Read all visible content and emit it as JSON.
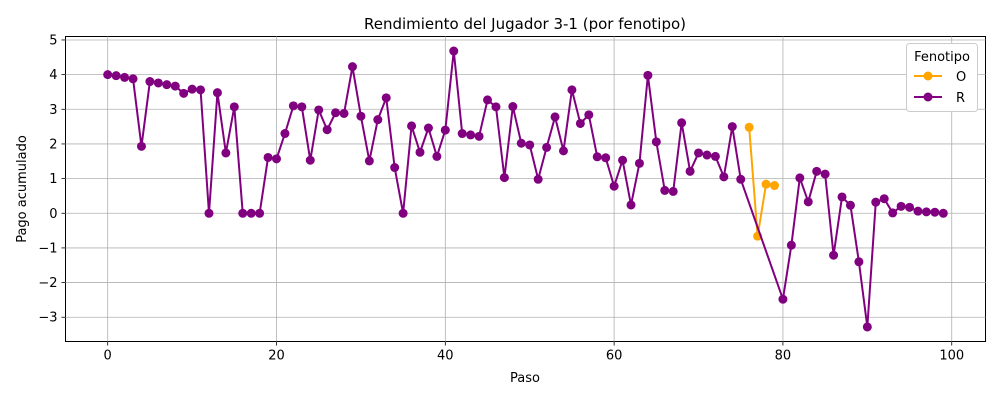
{
  "chart_data": {
    "type": "line",
    "title": "Rendimiento del Jugador 3-1 (por fenotipo)",
    "xlabel": "Paso",
    "ylabel": "Pago acumulado",
    "xlim": [
      -5,
      104
    ],
    "ylim": [
      -3.7,
      5.1
    ],
    "xticks": [
      0,
      20,
      40,
      60,
      80,
      100
    ],
    "yticks": [
      -3,
      -2,
      -1,
      0,
      1,
      2,
      3,
      4,
      5
    ],
    "grid": true,
    "legend": {
      "title": "Fenotipo",
      "placement": "top-right"
    },
    "series": [
      {
        "name": "O",
        "color": "#FFA500",
        "x": [
          76,
          77,
          78,
          79
        ],
        "y": [
          2.48,
          -0.66,
          0.84,
          0.8
        ]
      },
      {
        "name": "R",
        "color": "#800080",
        "x": [
          0,
          1,
          2,
          3,
          4,
          5,
          6,
          7,
          8,
          9,
          10,
          11,
          12,
          13,
          14,
          15,
          16,
          17,
          18,
          19,
          20,
          21,
          22,
          23,
          24,
          25,
          26,
          27,
          28,
          29,
          30,
          31,
          32,
          33,
          34,
          35,
          36,
          37,
          38,
          39,
          40,
          41,
          42,
          43,
          44,
          45,
          46,
          47,
          48,
          49,
          50,
          51,
          52,
          53,
          54,
          55,
          56,
          57,
          58,
          59,
          60,
          61,
          62,
          63,
          64,
          65,
          66,
          67,
          68,
          69,
          70,
          71,
          72,
          73,
          74,
          75,
          80,
          81,
          82,
          83,
          84,
          85,
          86,
          87,
          88,
          89,
          90,
          91,
          92,
          93,
          94,
          95,
          96,
          97,
          98,
          99
        ],
        "y": [
          4.0,
          3.97,
          3.92,
          3.88,
          1.93,
          3.8,
          3.76,
          3.71,
          3.67,
          3.46,
          3.58,
          3.56,
          0.0,
          3.48,
          1.74,
          3.07,
          0.0,
          0.0,
          0.0,
          1.61,
          1.57,
          2.3,
          3.1,
          3.07,
          1.53,
          2.98,
          2.41,
          2.9,
          2.88,
          4.23,
          2.8,
          1.51,
          2.7,
          3.33,
          1.32,
          0.0,
          2.52,
          1.76,
          2.46,
          1.64,
          2.4,
          4.68,
          2.3,
          2.26,
          2.22,
          3.27,
          3.07,
          1.03,
          3.08,
          2.02,
          1.97,
          0.98,
          1.9,
          2.78,
          1.8,
          3.56,
          2.59,
          2.84,
          1.63,
          1.6,
          0.78,
          1.53,
          0.24,
          1.44,
          3.98,
          2.06,
          0.66,
          0.63,
          2.61,
          1.21,
          1.74,
          1.68,
          1.64,
          1.05,
          2.5,
          0.98,
          -2.48,
          -0.92,
          1.02,
          0.33,
          1.21,
          1.13,
          -1.21,
          0.47,
          0.23,
          -1.4,
          -3.28,
          0.32,
          0.42,
          0.01,
          0.2,
          0.17,
          0.06,
          0.04,
          0.03,
          0.0
        ]
      }
    ]
  }
}
